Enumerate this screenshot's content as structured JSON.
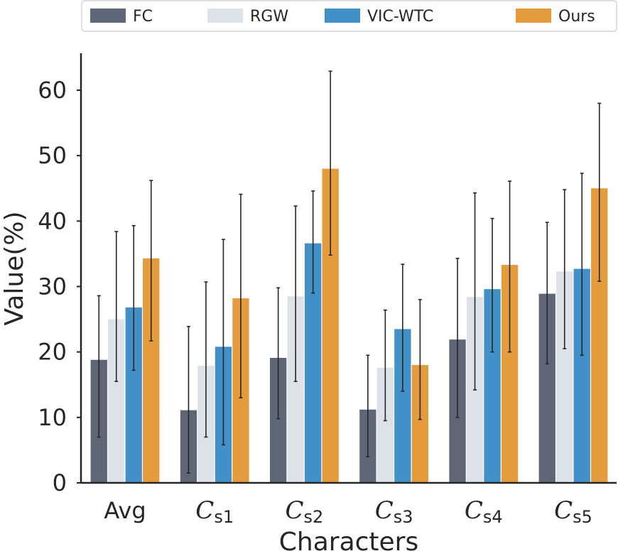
{
  "chart_data": {
    "type": "bar",
    "xlabel": "Characters",
    "ylabel": "Value(%)",
    "ylim": [
      0,
      65
    ],
    "yticks": [
      0,
      10,
      20,
      30,
      40,
      50,
      60
    ],
    "grid": false,
    "legend_position": "top",
    "categories": [
      {
        "main": "Avg",
        "sub": ""
      },
      {
        "main": "C",
        "sub": "s1"
      },
      {
        "main": "C",
        "sub": "s2"
      },
      {
        "main": "C",
        "sub": "s3"
      },
      {
        "main": "C",
        "sub": "s4"
      },
      {
        "main": "C",
        "sub": "s5"
      }
    ],
    "series": [
      {
        "name": "FC",
        "color": "#5f6676",
        "values": [
          18.8,
          11.1,
          19.1,
          11.2,
          21.9,
          28.9
        ],
        "err_low": [
          7.0,
          1.5,
          9.8,
          4.0,
          10.0,
          18.2
        ],
        "err_high": [
          28.6,
          23.9,
          29.8,
          19.5,
          34.3,
          39.8
        ]
      },
      {
        "name": "RGW",
        "color": "#dde1e8",
        "values": [
          25.0,
          17.9,
          28.5,
          17.6,
          28.4,
          32.3
        ],
        "err_low": [
          15.5,
          7.0,
          15.5,
          9.5,
          14.2,
          20.5
        ],
        "err_high": [
          38.4,
          30.7,
          42.3,
          26.4,
          44.3,
          44.8
        ]
      },
      {
        "name": "VIC-WTC",
        "color": "#4190c8",
        "values": [
          26.8,
          20.8,
          36.6,
          23.5,
          29.6,
          32.7
        ],
        "err_low": [
          17.2,
          5.8,
          29.0,
          14.0,
          20.0,
          19.5
        ],
        "err_high": [
          39.3,
          37.2,
          44.6,
          33.4,
          40.4,
          47.3
        ]
      },
      {
        "name": "Ours",
        "color": "#e49b3b",
        "values": [
          34.3,
          28.2,
          48.0,
          18.0,
          33.3,
          45.0
        ],
        "err_low": [
          21.7,
          13.0,
          34.8,
          9.7,
          20.0,
          30.8
        ],
        "err_high": [
          46.2,
          44.1,
          62.9,
          28.0,
          46.1,
          58.0
        ]
      }
    ]
  }
}
